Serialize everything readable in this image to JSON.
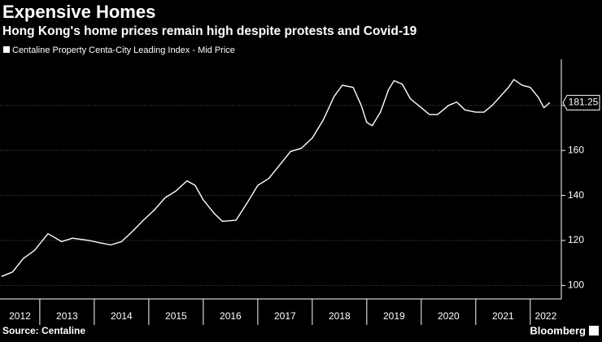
{
  "chart_data": {
    "type": "line",
    "title": "Expensive Homes",
    "subtitle": "Hong Kong's home prices remain high despite protests and Covid-19",
    "source": "Source: Centaline",
    "brand": "Bloomberg",
    "series": [
      {
        "name": "Centaline Property Centa-City Leading Index - Mid Price",
        "color": "#ffffff",
        "x": [
          2012.3,
          2012.5,
          2012.7,
          2012.9,
          2013.15,
          2013.4,
          2013.6,
          2013.9,
          2014.1,
          2014.3,
          2014.5,
          2014.7,
          2014.9,
          2015.1,
          2015.3,
          2015.5,
          2015.7,
          2015.85,
          2016.0,
          2016.2,
          2016.35,
          2016.6,
          2016.8,
          2017.0,
          2017.2,
          2017.4,
          2017.6,
          2017.8,
          2018.0,
          2018.2,
          2018.4,
          2018.55,
          2018.75,
          2018.9,
          2019.0,
          2019.1,
          2019.25,
          2019.4,
          2019.5,
          2019.65,
          2019.8,
          2020.0,
          2020.15,
          2020.3,
          2020.5,
          2020.65,
          2020.8,
          2021.0,
          2021.15,
          2021.3,
          2021.45,
          2021.6,
          2021.7,
          2021.85,
          2022.0,
          2022.15,
          2022.25,
          2022.36
        ],
        "values": [
          104,
          106,
          112,
          115.5,
          123,
          119.5,
          121,
          120,
          119,
          118,
          119.5,
          124,
          129,
          133.5,
          139,
          142,
          146.5,
          144.5,
          138,
          132,
          128.5,
          129,
          136.5,
          144.5,
          147.5,
          153.5,
          159.5,
          161,
          165.5,
          173.5,
          184,
          189,
          188,
          180,
          172.5,
          171,
          177,
          187,
          191,
          189.5,
          183,
          179,
          176,
          176,
          180,
          181.5,
          178,
          177,
          177,
          180,
          184,
          188,
          191.5,
          189,
          188,
          183.5,
          179,
          181.25
        ],
        "last_value_label": "181.25"
      }
    ],
    "xlim": [
      2012.27,
      2022.57
    ],
    "xticks": [
      2012,
      2013,
      2014,
      2015,
      2016,
      2017,
      2018,
      2019,
      2020,
      2021,
      2022
    ],
    "ylim": [
      94,
      200.5
    ],
    "yticks": [
      100,
      120,
      140,
      160,
      180
    ],
    "grid": true
  }
}
